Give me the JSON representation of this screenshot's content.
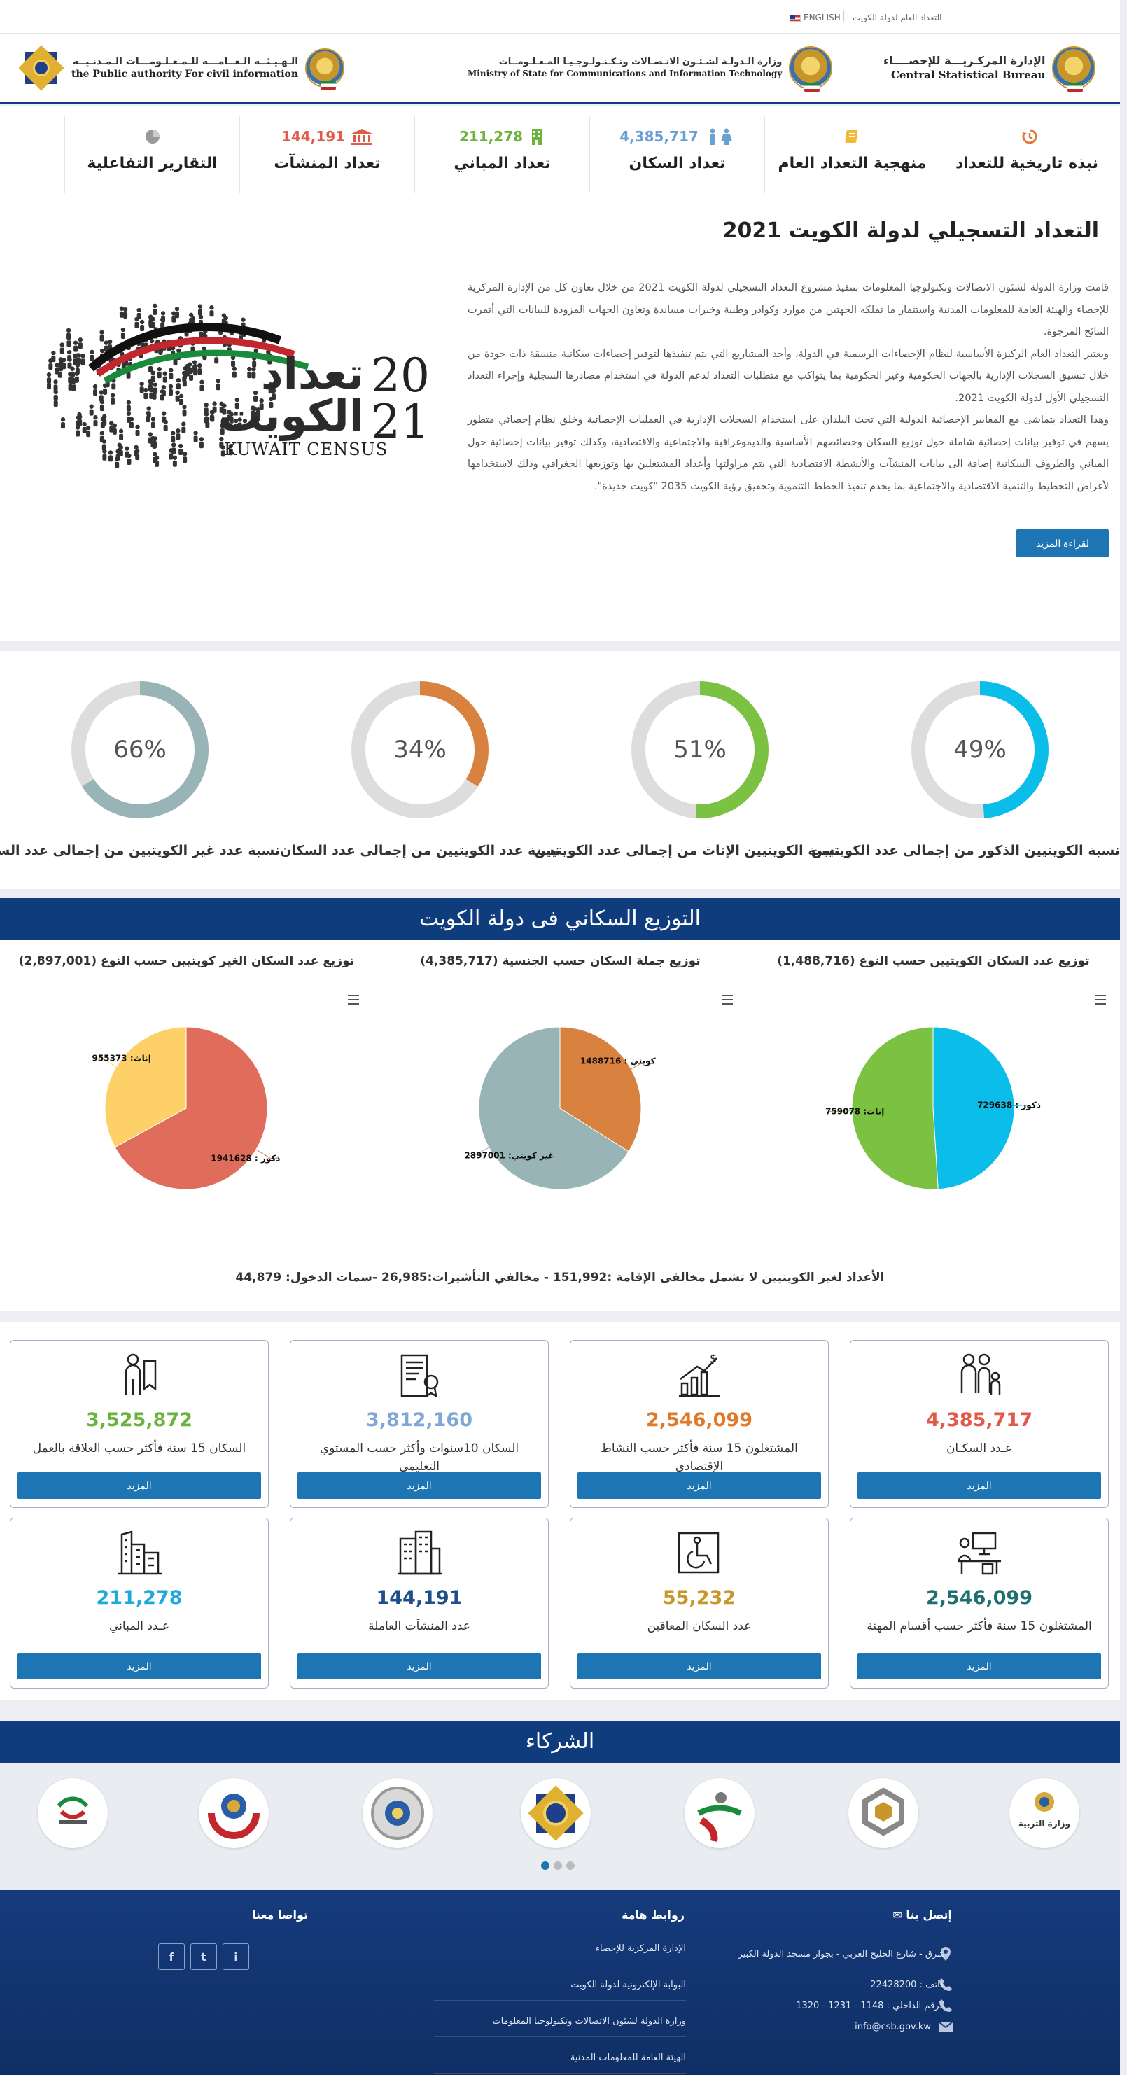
{
  "topbar": {
    "census_link": "التعداد العام لدولة الكويت",
    "lang_label": "ENGLISH"
  },
  "header": {
    "csb": {
      "ar": "الإدارة المركـزيـــة للإحصــــاء",
      "en": "Central Statistical Bureau"
    },
    "ministry": {
      "ar": "وزارة الـدولـة لشـئـون الاتـصـالات وتـكـنـولـوجـيـا المـعـلـومــات",
      "en": "Ministry of State for Communications and Information Technology"
    },
    "paci": {
      "ar": "الـهـيـئــة الـعــامـــة للـمـعـلـومـــات الـمـدنـيــة",
      "en": "the Public authority For civil information"
    }
  },
  "nav": [
    {
      "label": "نبذه تاريخية للتعداد",
      "value": "",
      "icon": "history-icon",
      "color": "#e07a3a"
    },
    {
      "label": "منهجية التعداد العام",
      "value": "",
      "icon": "book-icon",
      "color": "#f0b93a"
    },
    {
      "label": "تعداد السكان",
      "value": "4,385,717",
      "icon": "people-icon",
      "color": "#6a9fd2"
    },
    {
      "label": "تعداد المباني",
      "value": "211,278",
      "icon": "building-icon",
      "color": "#6bb33c"
    },
    {
      "label": "تعداد المنشآت",
      "value": "144,191",
      "icon": "institution-icon",
      "color": "#e05a4a"
    },
    {
      "label": "التقارير التفاعلية",
      "value": "",
      "icon": "pie-chart-icon",
      "color": "#999999"
    }
  ],
  "about": {
    "title": "التعداد التسجيلي لدولة الكويت 2021",
    "paragraphs": [
      "قامت وزارة الدولة لشئون الاتصالات وتكنولوجيا المعلومات بتنفيذ مشروع التعداد التسجيلي لدولة الكويت 2021 من خلال تعاون كل من الإدارة المركزية للإحصاء والهيئة العامة للمعلومات المدنية واستثمار ما تملكه الجهتين من موارد وكوادر وطنية وخبرات مساندة وتعاون الجهات المزودة للبيانات التي أثمرت النتائج المرجوة.",
      "ويعتبر التعداد العام الركيزة الأساسية لنظام الإحصاءات الرسمية في الدولة، وأحد المشاريع التي يتم تنفيذها لتوفير إحصاءات سكانية منسقة ذات جودة من خلال تنسيق السجلات الإدارية بالجهات الحكومية وغير الحكومية بما يتواكب مع متطلبات التعداد لدعم الدولة في استخدام مصادرها السجلية وإجراء التعداد التسجيلي الأول لدولة الكويت 2021.",
      "وهذا التعداد يتماشى مع المعايير الإحصائية الدولية التي تحث البلدان على استخدام السجلات الإدارية في العمليات الإحصائية وخلق نظام إحصائي متطور يسهم في توفير بيانات إحصائية شاملة حول توزيع السكان وخصائصهم الأساسية والديموغرافية والاجتماعية والاقتصادية، وكذلك توفير بيانات إحصائية حول المباني والظروف السكانية إضافة الى بيانات المنشآت والأنشطة الاقتصادية التي يتم مزاولتها وأعداد المشتغلين بها وتوزيعها الجغرافي وذلك لاستخدامها لأغراض التخطيط والتنمية الاقتصادية والاجتماعية بما يخدم تنفيذ الخطط التنموية وتحقيق رؤية الكويت 2035 \"كويت جديدة\"."
    ],
    "read_more": "لقراءة المزيد",
    "logo_ar": "تعداد الكويت",
    "logo_year_top": "20",
    "logo_year_bottom": "21",
    "logo_en": "KUWAIT CENSUS"
  },
  "ratios": [
    {
      "label": "نسبة الكويتيين الذكور من إجمالى عدد الكويتيين",
      "percent": 49,
      "percent_text": "49%",
      "color": "#0bbde9"
    },
    {
      "label": "نسبة الكويتيين الإناث من إجمالى عدد الكويتيين",
      "percent": 51,
      "percent_text": "51%",
      "color": "#7cc242"
    },
    {
      "label": "نسبة عدد الكويتيين من إجمالى عدد السكان",
      "percent": 34,
      "percent_text": "34%",
      "color": "#d9813e"
    },
    {
      "label": "نسبة عدد غير الكويتيين من إجمالى عدد السكان",
      "percent": 66,
      "percent_text": "66%",
      "color": "#98b4b6"
    }
  ],
  "distribution": {
    "title": "التوزيع السكاني فى دولة الكويت",
    "note": "الأعداد لغير الكويتيين لا تشمل مخالفى الإقامة :151,992 - مخالفي التأشيرات:26,985 -سمات الدخول: 44,879",
    "chart_data": [
      {
        "type": "pie",
        "title": "توزيع عدد السكان الكويتيين حسب النوع (1,488,716)",
        "categories": [
          "ذكور",
          "إناث"
        ],
        "values": [
          729638,
          759078
        ],
        "labels": [
          "ذكور : 729638",
          "إناث: 759078"
        ],
        "colors": [
          "#0bbde9",
          "#7cc242"
        ]
      },
      {
        "type": "pie",
        "title": "توزيع جملة السكان حسب الجنسية (4,385,717)",
        "categories": [
          "كويتي",
          "غير كويتي"
        ],
        "values": [
          1488716,
          2897001
        ],
        "labels": [
          "كويتي : 1488716",
          "غير كويتي: 2897001"
        ],
        "colors": [
          "#d9813e",
          "#98b4b6"
        ]
      },
      {
        "type": "pie",
        "title": "توزيع عدد السكان الغير كويتيين حسب النوع (2,897,001)",
        "categories": [
          "ذكور",
          "إناث"
        ],
        "values": [
          1941628,
          955373
        ],
        "labels": [
          "ذكور : 1941628",
          "إناث: 955373"
        ],
        "colors": [
          "#e06d5c",
          "#fdd168"
        ]
      }
    ]
  },
  "indicators": [
    {
      "value": "4,385,717",
      "label": "عـدد السكـان",
      "color": "#e05a4a",
      "icon": "family-icon",
      "button": "المزيد"
    },
    {
      "value": "2,546,099",
      "label": "المشتغلون 15 سنة فأكثر حسب النشاط الإقتصادي",
      "color": "#e07a2a",
      "icon": "growth-chart-icon",
      "button": "المزيد"
    },
    {
      "value": "3,812,160",
      "label": "السكان 10سنوات وأكثر حسب المستوي التعليمي",
      "color": "#7ea6d6",
      "icon": "certificate-icon",
      "button": "المزيد"
    },
    {
      "value": "3,525,872",
      "label": "السكان 15 سنة فأكثر حسب العلاقة بالعمل",
      "color": "#6bb33c",
      "icon": "worker-icon",
      "button": "المزيد"
    },
    {
      "value": "2,546,099",
      "label": "المشتغلون 15 سنة فأكثر حسب أقسام المهنة",
      "color": "#1e6f6f",
      "icon": "office-desk-icon",
      "button": "المزيد"
    },
    {
      "value": "55,232",
      "label": "عدد السكان المعاقين",
      "color": "#c8962a",
      "icon": "wheelchair-icon",
      "button": "المزيد"
    },
    {
      "value": "144,191",
      "label": "عدد المنشآت العاملة",
      "color": "#1f4f8a",
      "icon": "buildings-icon",
      "button": "المزيد"
    },
    {
      "value": "211,278",
      "label": "عـدد المباني",
      "color": "#1ea9d8",
      "icon": "city-icon",
      "button": "المزيد"
    }
  ],
  "partners": {
    "title": "الشركاء",
    "logos": [
      {
        "name": "ministry-of-education-logo",
        "text": "وزارة التربية"
      },
      {
        "name": "partner-logo-2",
        "text": ""
      },
      {
        "name": "partner-logo-3",
        "text": ""
      },
      {
        "name": "paci-logo",
        "text": ""
      },
      {
        "name": "police-logo",
        "text": ""
      },
      {
        "name": "health-logo",
        "text": ""
      },
      {
        "name": "partner-logo-7",
        "text": ""
      }
    ]
  },
  "footer": {
    "contact": {
      "title": "إتصل بنا",
      "address": "شرق - شارع الخليج العربي - بجوار مسجد الدولة الكبير",
      "phone": "هاتف : 22428200",
      "ext": "الرقم الداخلي : 1148 - 1231 - 1320",
      "email": "info@csb.gov.kw"
    },
    "links": {
      "title": "روابط هامة",
      "items": [
        "الإدارة المركزية للإحصاء",
        "البوابة الإلكترونية لدولة الكويت",
        "وزارة الدولة لشئون الاتصالات وتكنولوجيا المعلومات",
        "الهيئة العامة للمعلومات المدنية"
      ]
    },
    "social": {
      "title": "تواصا معنا",
      "items": [
        "f",
        "t",
        "i"
      ]
    }
  }
}
